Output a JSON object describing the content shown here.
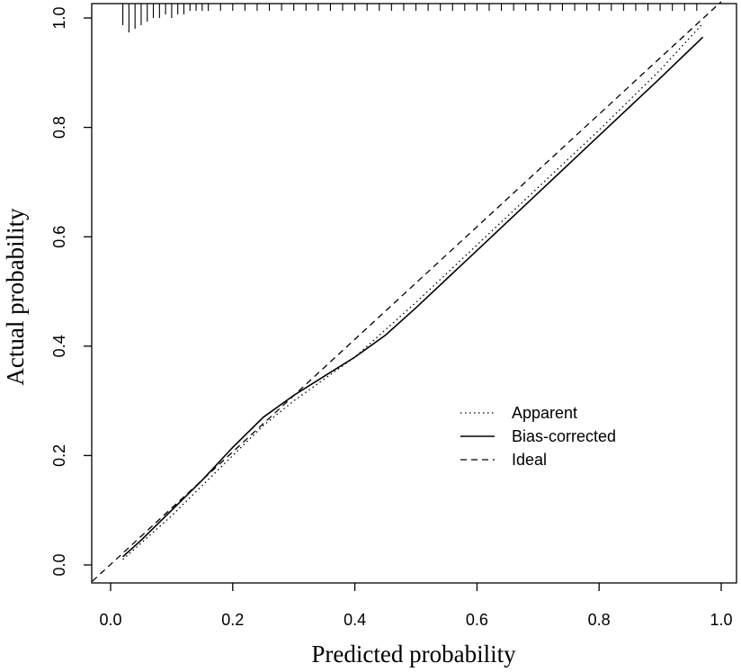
{
  "chart_data": {
    "type": "line",
    "title": "",
    "xlabel": "Predicted probability",
    "ylabel": "Actual probability",
    "xlim": [
      0.0,
      1.0
    ],
    "ylim": [
      0.0,
      1.0
    ],
    "xticks": [
      "0.0",
      "0.2",
      "0.4",
      "0.6",
      "0.8",
      "1.0"
    ],
    "yticks": [
      "0.0",
      "0.2",
      "0.4",
      "0.6",
      "0.8",
      "1.0"
    ],
    "grid": false,
    "legend_position": "right",
    "series": [
      {
        "name": "Apparent",
        "line_style": "dotted",
        "x": [
          0.02,
          0.05,
          0.1,
          0.15,
          0.2,
          0.25,
          0.3,
          0.35,
          0.4,
          0.45,
          0.5,
          0.6,
          0.7,
          0.8,
          0.9,
          0.97
        ],
        "y": [
          0.01,
          0.04,
          0.09,
          0.145,
          0.2,
          0.255,
          0.3,
          0.34,
          0.38,
          0.43,
          0.48,
          0.585,
          0.69,
          0.795,
          0.905,
          0.99
        ]
      },
      {
        "name": "Bias-corrected",
        "line_style": "solid",
        "x": [
          0.02,
          0.05,
          0.1,
          0.15,
          0.2,
          0.25,
          0.3,
          0.35,
          0.4,
          0.45,
          0.5,
          0.6,
          0.7,
          0.8,
          0.9,
          0.97
        ],
        "y": [
          0.015,
          0.045,
          0.1,
          0.155,
          0.215,
          0.27,
          0.31,
          0.345,
          0.38,
          0.42,
          0.47,
          0.575,
          0.68,
          0.785,
          0.89,
          0.965
        ]
      },
      {
        "name": "Ideal",
        "line_style": "dashed",
        "x": [
          -0.03,
          1.0
        ],
        "y": [
          -0.03,
          1.03
        ]
      }
    ],
    "rug": {
      "position": "top",
      "x": [
        0.02,
        0.03,
        0.04,
        0.05,
        0.06,
        0.07,
        0.08,
        0.09,
        0.1,
        0.11,
        0.12,
        0.13,
        0.14,
        0.15,
        0.16,
        0.18,
        0.2,
        0.22,
        0.24,
        0.26,
        0.28,
        0.3,
        0.32,
        0.34,
        0.36,
        0.38,
        0.4,
        0.42,
        0.44,
        0.46,
        0.48,
        0.5,
        0.52,
        0.54,
        0.56,
        0.58,
        0.6,
        0.62,
        0.64,
        0.66,
        0.68,
        0.7,
        0.72,
        0.74,
        0.76,
        0.78,
        0.8,
        0.82,
        0.84,
        0.86,
        0.88,
        0.9,
        0.92,
        0.94,
        0.96
      ],
      "count": [
        5,
        7,
        6,
        5,
        4,
        3,
        3,
        2,
        3,
        2,
        2,
        1,
        1,
        1,
        1,
        1,
        1,
        1,
        1,
        1,
        1,
        1,
        1,
        1,
        1,
        1,
        1,
        1,
        1,
        1,
        1,
        1,
        1,
        1,
        1,
        1,
        1,
        1,
        1,
        1,
        1,
        1,
        1,
        1,
        1,
        1,
        1,
        1,
        1,
        1,
        1,
        1,
        1,
        1,
        1
      ]
    }
  }
}
